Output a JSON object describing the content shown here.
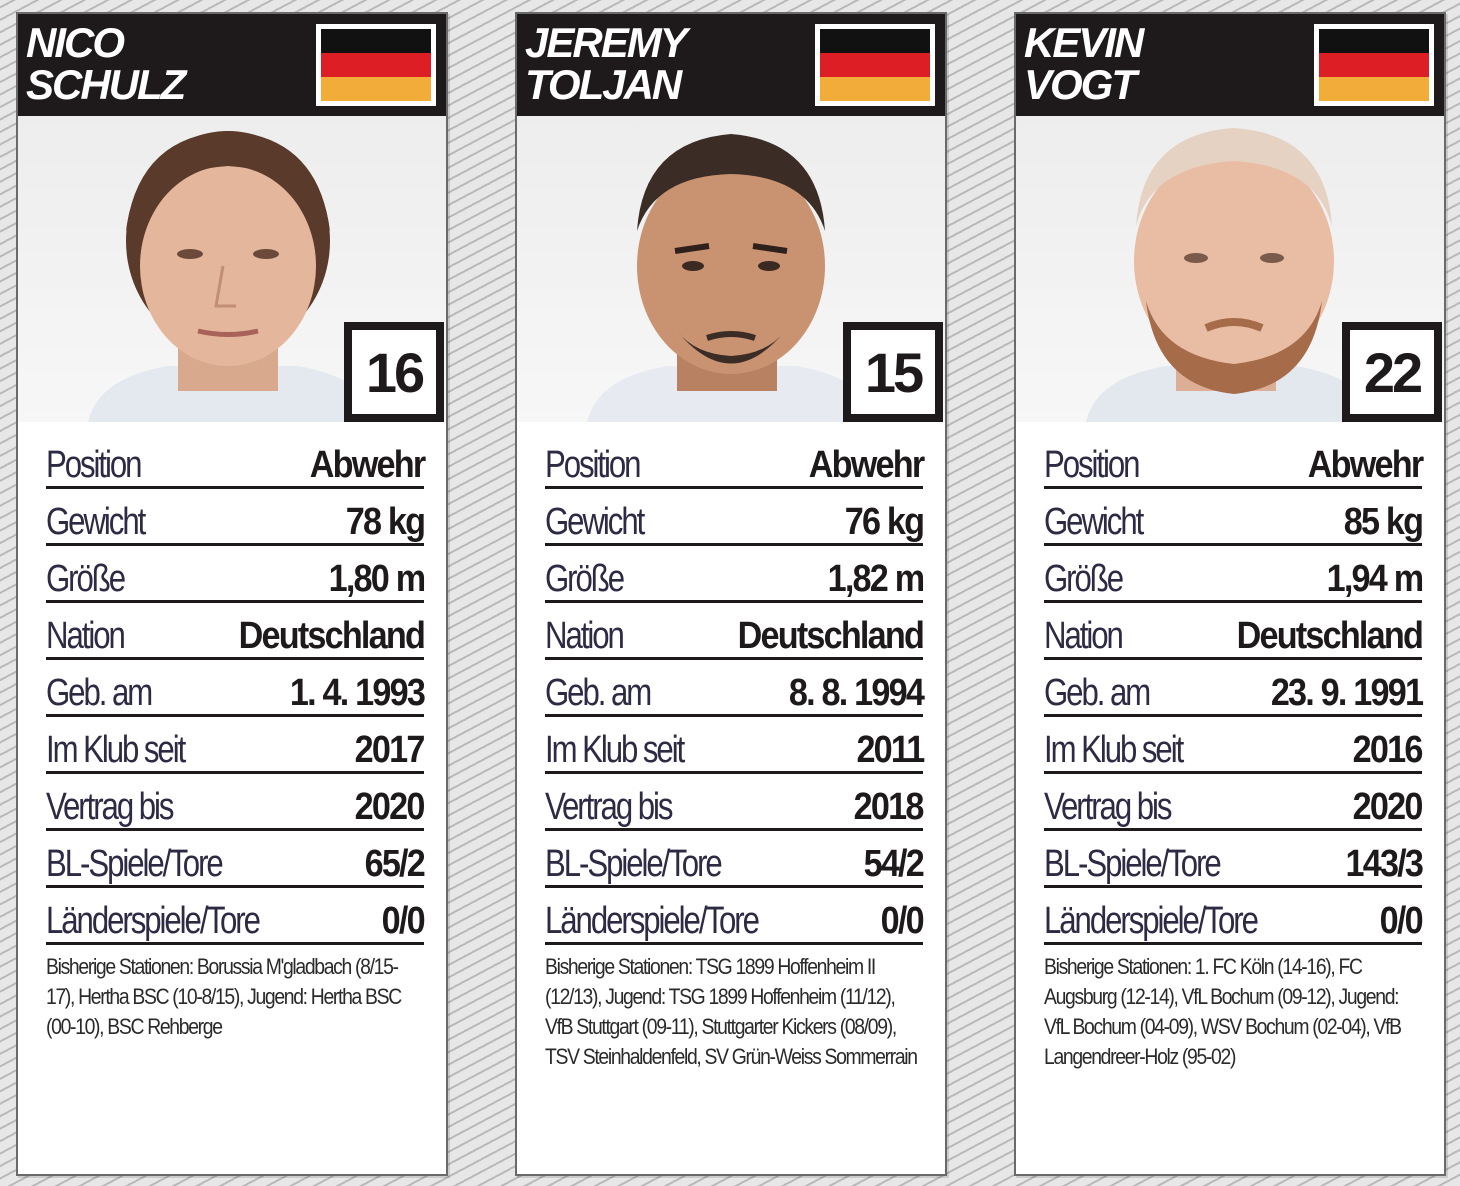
{
  "cards": [
    {
      "first_name": "NICO",
      "last_name": "SCHULZ",
      "flag_icon": "germany-flag-icon",
      "number": "16",
      "stats": [
        {
          "label": "Position",
          "value": "Abwehr"
        },
        {
          "label": "Gewicht",
          "value": "78 kg"
        },
        {
          "label": "Größe",
          "value": "1,80 m"
        },
        {
          "label": "Nation",
          "value": "Deutschland"
        },
        {
          "label": "Geb. am",
          "value": "1. 4. 1993"
        },
        {
          "label": "Im Klub seit",
          "value": "2017"
        },
        {
          "label": "Vertrag bis",
          "value": "2020"
        },
        {
          "label": "BL-Spiele/Tore",
          "value": "65/2"
        },
        {
          "label": "Länderspiele/Tore",
          "value": "0/0"
        }
      ],
      "stations": "Bisherige Stationen: Borussia M'gladbach (8/15-17), Hertha BSC (10-8/15), Jugend: Hertha BSC (00-10), BSC Rehberge"
    },
    {
      "first_name": "JEREMY",
      "last_name": "TOLJAN",
      "flag_icon": "germany-flag-icon",
      "number": "15",
      "stats": [
        {
          "label": "Position",
          "value": "Abwehr"
        },
        {
          "label": "Gewicht",
          "value": "76 kg"
        },
        {
          "label": "Größe",
          "value": "1,82 m"
        },
        {
          "label": "Nation",
          "value": "Deutschland"
        },
        {
          "label": "Geb. am",
          "value": "8. 8. 1994"
        },
        {
          "label": "Im Klub seit",
          "value": "2011"
        },
        {
          "label": "Vertrag bis",
          "value": "2018"
        },
        {
          "label": "BL-Spiele/Tore",
          "value": "54/2"
        },
        {
          "label": "Länderspiele/Tore",
          "value": "0/0"
        }
      ],
      "stations": "Bisherige Stationen: TSG 1899 Hoffenheim II (12/13), Jugend: TSG 1899 Hoffenheim (11/12), VfB Stuttgart (09-11), Stuttgarter Kickers (08/09), TSV Steinhaldenfeld, SV Grün-Weiss Sommerrain"
    },
    {
      "first_name": "KEVIN",
      "last_name": "VOGT",
      "flag_icon": "germany-flag-icon",
      "number": "22",
      "stats": [
        {
          "label": "Position",
          "value": "Abwehr"
        },
        {
          "label": "Gewicht",
          "value": "85 kg"
        },
        {
          "label": "Größe",
          "value": "1,94 m"
        },
        {
          "label": "Nation",
          "value": "Deutschland"
        },
        {
          "label": "Geb. am",
          "value": "23. 9. 1991"
        },
        {
          "label": "Im Klub seit",
          "value": "2016"
        },
        {
          "label": "Vertrag bis",
          "value": "2020"
        },
        {
          "label": "BL-Spiele/Tore",
          "value": "143/3"
        },
        {
          "label": "Länderspiele/Tore",
          "value": "0/0"
        }
      ],
      "stations": "Bisherige Stationen: 1. FC Köln (14-16), FC Augsburg (12-14), VfL Bochum (09-12), Jugend: VfL Bochum (04-09), WSV Bochum (02-04), VfB Langendreer-Holz (95-02)"
    }
  ],
  "colors": {
    "header": "#1e1a1b",
    "flag_black": "#111111",
    "flag_red": "#dd1f25",
    "flag_gold": "#f2ac3a"
  }
}
